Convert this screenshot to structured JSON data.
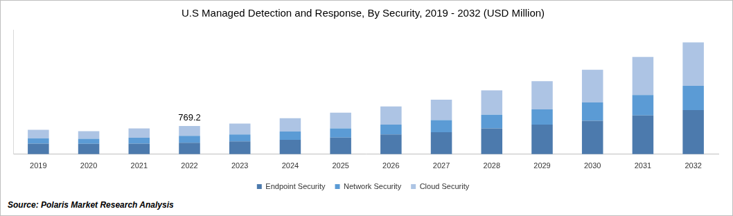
{
  "chart_data": {
    "type": "bar",
    "stacked": true,
    "title": "U.S Managed Detection and Response, By Security, 2019 - 2032 (USD Million)",
    "source": "Source: Polaris Market Research Analysis",
    "categories": [
      "2019",
      "2020",
      "2021",
      "2022",
      "2023",
      "2024",
      "2025",
      "2026",
      "2027",
      "2028",
      "2029",
      "2030",
      "2031",
      "2032"
    ],
    "series": [
      {
        "name": "Endpoint Security",
        "color": "#4c7aad",
        "values": [
          291,
          284,
          290,
          312.4,
          350,
          395,
          455,
          540,
          600,
          705,
          810,
          915,
          1060,
          1205
        ]
      },
      {
        "name": "Network Security",
        "color": "#5b9bd5",
        "values": [
          146,
          140,
          160,
          187.3,
          190,
          225,
          250,
          270,
          330,
          375,
          415,
          500,
          560,
          665
        ]
      },
      {
        "name": "Cloud Security",
        "color": "#adc4e4",
        "values": [
          229,
          205,
          255,
          269.5,
          300,
          365,
          430,
          495,
          560,
          665,
          770,
          895,
          1040,
          1185
        ]
      }
    ],
    "annotations": [
      {
        "category": "2022",
        "value": 769.2,
        "label": "769.2"
      }
    ],
    "ylim": [
      0,
      3400
    ],
    "tick_labels": "x",
    "grid": false,
    "legend": "bottom"
  }
}
